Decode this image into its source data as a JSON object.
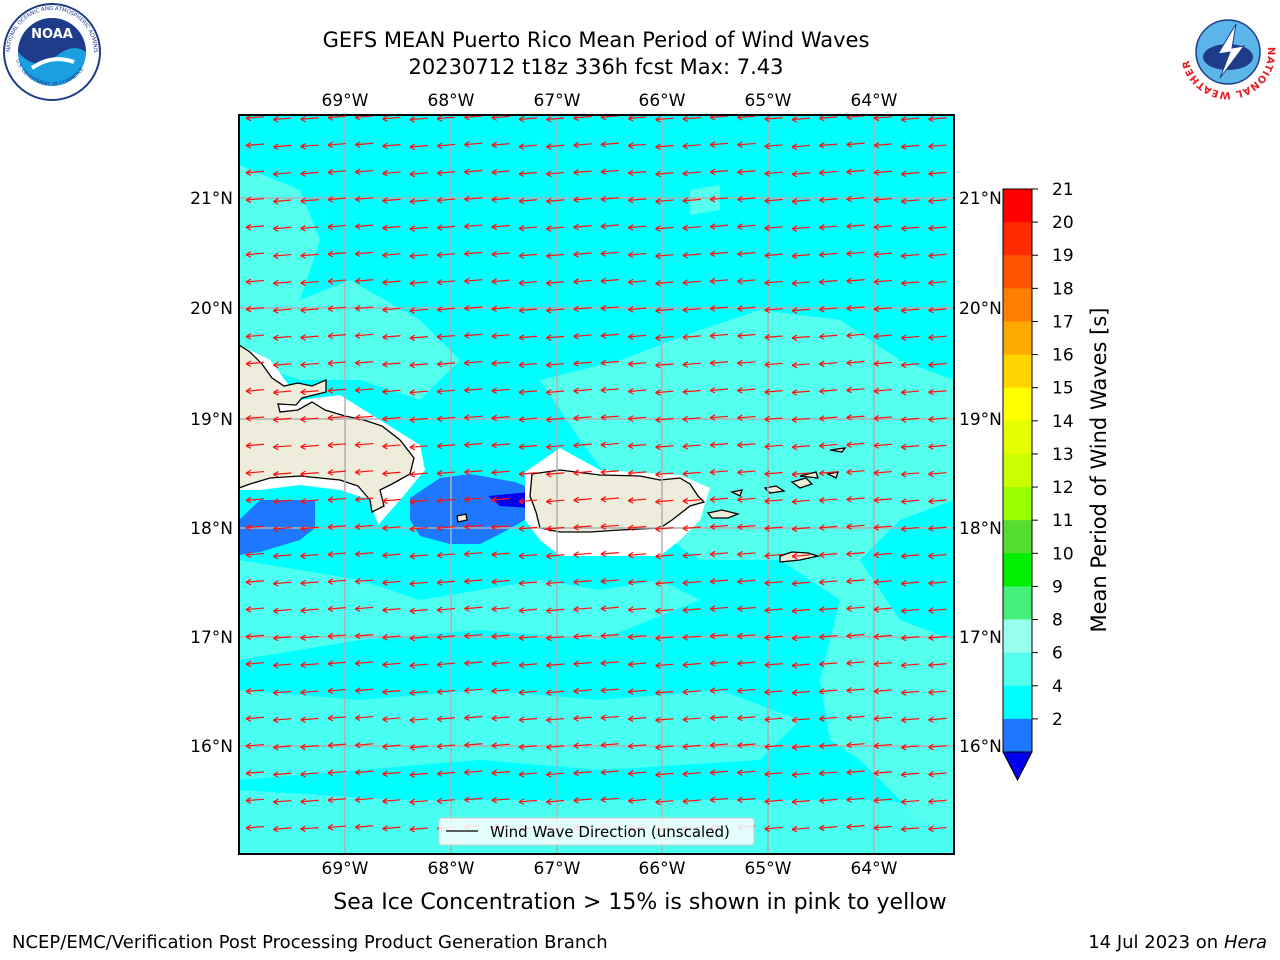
{
  "title_line1": "GEFS MEAN Puerto Rico Mean Period of Wind Waves",
  "title_line2": "20230712 t18z 336h fcst   Max: 7.43",
  "noaa_logo": {
    "text": "NOAA",
    "ring_text": "NATIONAL OCEANIC AND ATMOSPHERIC ADMINISTRATION",
    "bottom_text": "U.S. DEPARTMENT OF COMMERCE"
  },
  "nws_logo": {
    "ring_text": "NATIONAL WEATHER SERVICE"
  },
  "lon_ticks": [
    "69°W",
    "68°W",
    "67°W",
    "66°W",
    "65°W",
    "64°W"
  ],
  "lat_ticks": [
    "21°N",
    "20°N",
    "19°N",
    "18°N",
    "17°N",
    "16°N"
  ],
  "legend_label": "Wind Wave Direction (unscaled)",
  "colorbar": {
    "label": "Mean Period of Wind Waves [s]",
    "ticks": [
      "21",
      "20",
      "19",
      "18",
      "17",
      "16",
      "15",
      "14",
      "13",
      "12",
      "11",
      "10",
      "9",
      "8",
      "6",
      "4",
      "2"
    ],
    "colors": [
      "#ff0000",
      "#ff2a00",
      "#ff5500",
      "#ff8000",
      "#ffaa00",
      "#ffd500",
      "#ffff00",
      "#e6ff00",
      "#ccff00",
      "#99ff00",
      "#55dd33",
      "#00ee00",
      "#44f07a",
      "#99ffee",
      "#55ffee",
      "#00ffff",
      "#1e78ff",
      "#0000ee"
    ]
  },
  "map_colors": {
    "ocean_main": "#00ffff",
    "ocean_light": "#55ffee",
    "ocean_dark": "#1e78ff",
    "ocean_darkest": "#0000ee",
    "land": "#eeecda",
    "arrow": "#ff1111"
  },
  "subtitle": "Sea Ice Concentration > 15% is shown in pink to yellow",
  "footer_left": "NCEP/EMC/Verification Post Processing Product Generation Branch",
  "footer_right_prefix": "14 Jul 2023 on ",
  "footer_right_host": "Hera"
}
